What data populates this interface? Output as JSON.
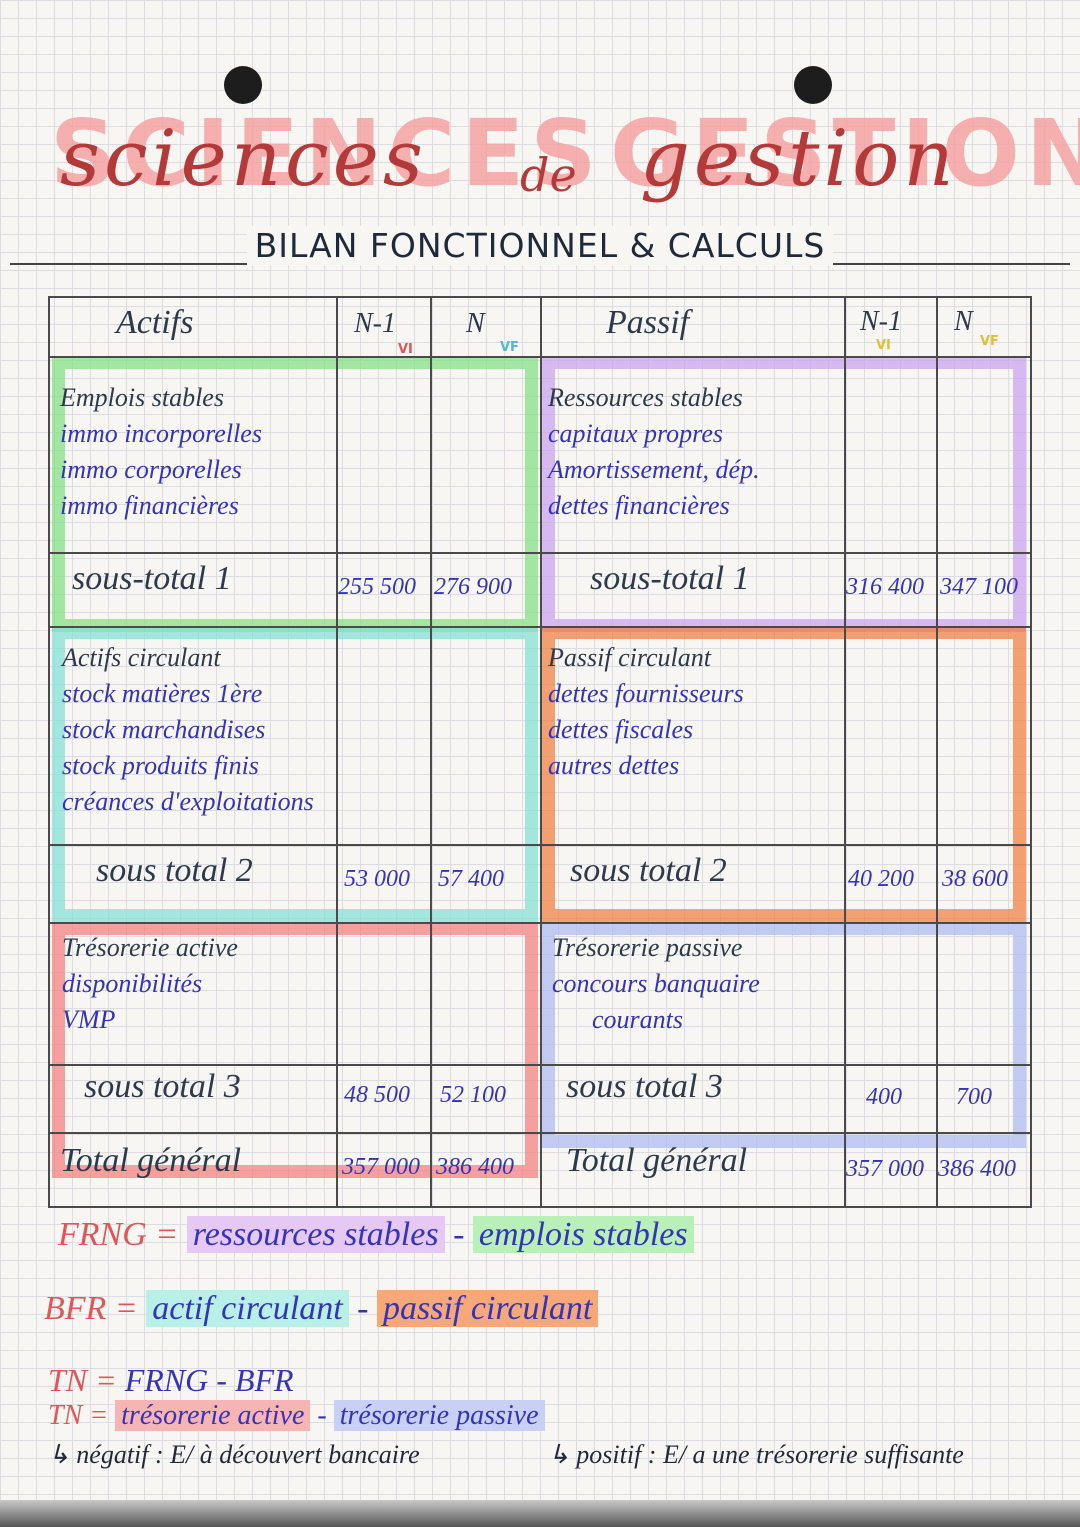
{
  "title": {
    "script": "sciences",
    "de": "de",
    "script2": "gestion",
    "big": "SCIENCES",
    "big2": "GESTION"
  },
  "subtitle": "BILAN FONCTIONNEL & CALCULS",
  "header": {
    "actifs": "Actifs",
    "passif": "Passif",
    "n1": "N-1",
    "n": "N",
    "vi": "VI",
    "vf": "VF"
  },
  "actif": {
    "emplois": [
      "Emplois stables",
      "immo incorporelles",
      "immo corporelles",
      "immo financières"
    ],
    "st1": {
      "label": "sous-total 1",
      "n1": "255 500",
      "n": "276 900"
    },
    "circulant": [
      "Actifs circulant",
      "stock matières 1ère",
      "stock marchandises",
      "stock produits finis",
      "créances d'exploitations"
    ],
    "st2": {
      "label": "sous total 2",
      "n1": "53 000",
      "n": "57 400"
    },
    "tresorerie": [
      "Trésorerie active",
      "disponibilités",
      "VMP"
    ],
    "st3": {
      "label": "sous total 3",
      "n1": "48 500",
      "n": "52 100"
    },
    "total": {
      "label": "Total général",
      "n1": "357 000",
      "n": "386 400"
    }
  },
  "passif": {
    "ressources": [
      "Ressources stables",
      "capitaux propres",
      "Amortissement, dép.",
      "dettes financières"
    ],
    "st1": {
      "label": "sous-total 1",
      "n1": "316 400",
      "n": "347 100"
    },
    "circulant": [
      "Passif circulant",
      "dettes fournisseurs",
      "dettes fiscales",
      "autres dettes"
    ],
    "st2": {
      "label": "sous total 2",
      "n1": "40 200",
      "n": "38 600"
    },
    "tresorerie": [
      "Trésorerie passive",
      "concours banquaire",
      "courants"
    ],
    "st3": {
      "label": "sous total 3",
      "n1": "400",
      "n": "700"
    },
    "total": {
      "label": "Total général",
      "n1": "357 000",
      "n": "386 400"
    }
  },
  "formulas": {
    "frng": {
      "lhs": "FRNG =",
      "a": "ressources stables",
      "op": "-",
      "b": "emplois stables"
    },
    "bfr": {
      "lhs": "BFR =",
      "a": "actif circulant",
      "op": "-",
      "b": "passif circulant"
    },
    "tn1": {
      "lhs": "TN =",
      "rest": "FRNG - BFR"
    },
    "tn2": {
      "lhs": "TN =",
      "a": "trésorerie active",
      "op": "-",
      "b": "trésorerie passive"
    }
  },
  "notes": {
    "neg": "↳ négatif : E/ à découvert bancaire",
    "pos": "↳ positif : E/ a une trésorerie suffisante"
  },
  "colors": {
    "green": "#7ee07e",
    "purple": "#c9a0f0",
    "teal": "#7fe0d4",
    "orange": "#f07a3a",
    "red": "#f57a7a",
    "blue": "#a9b8f0"
  }
}
